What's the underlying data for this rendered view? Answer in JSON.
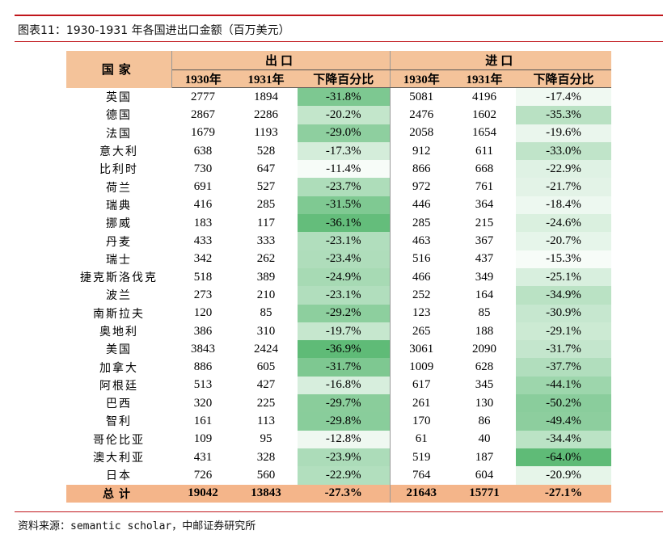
{
  "title": "图表11：1930-1931 年各国进出口金额（百万美元）",
  "source": "资料来源：semantic scholar，中邮证券研究所",
  "header": {
    "country": "国家",
    "export": "出口",
    "import": "进口",
    "y1930": "1930年",
    "y1931": "1931年",
    "decline": "下降百分比"
  },
  "rows": [
    {
      "country": "英国",
      "e1930": "2777",
      "e1931": "1894",
      "edrop": "-31.8%",
      "i1930": "5081",
      "i1931": "4196",
      "idrop": "-17.4%"
    },
    {
      "country": "德国",
      "e1930": "2867",
      "e1931": "2286",
      "edrop": "-20.2%",
      "i1930": "2476",
      "i1931": "1602",
      "idrop": "-35.3%"
    },
    {
      "country": "法国",
      "e1930": "1679",
      "e1931": "1193",
      "edrop": "-29.0%",
      "i1930": "2058",
      "i1931": "1654",
      "idrop": "-19.6%"
    },
    {
      "country": "意大利",
      "e1930": "638",
      "e1931": "528",
      "edrop": "-17.3%",
      "i1930": "912",
      "i1931": "611",
      "idrop": "-33.0%"
    },
    {
      "country": "比利时",
      "e1930": "730",
      "e1931": "647",
      "edrop": "-11.4%",
      "i1930": "866",
      "i1931": "668",
      "idrop": "-22.9%"
    },
    {
      "country": "荷兰",
      "e1930": "691",
      "e1931": "527",
      "edrop": "-23.7%",
      "i1930": "972",
      "i1931": "761",
      "idrop": "-21.7%"
    },
    {
      "country": "瑞典",
      "e1930": "416",
      "e1931": "285",
      "edrop": "-31.5%",
      "i1930": "446",
      "i1931": "364",
      "idrop": "-18.4%"
    },
    {
      "country": "挪威",
      "e1930": "183",
      "e1931": "117",
      "edrop": "-36.1%",
      "i1930": "285",
      "i1931": "215",
      "idrop": "-24.6%"
    },
    {
      "country": "丹麦",
      "e1930": "433",
      "e1931": "333",
      "edrop": "-23.1%",
      "i1930": "463",
      "i1931": "367",
      "idrop": "-20.7%"
    },
    {
      "country": "瑞士",
      "e1930": "342",
      "e1931": "262",
      "edrop": "-23.4%",
      "i1930": "516",
      "i1931": "437",
      "idrop": "-15.3%"
    },
    {
      "country": "捷克斯洛伐克",
      "e1930": "518",
      "e1931": "389",
      "edrop": "-24.9%",
      "i1930": "466",
      "i1931": "349",
      "idrop": "-25.1%"
    },
    {
      "country": "波兰",
      "e1930": "273",
      "e1931": "210",
      "edrop": "-23.1%",
      "i1930": "252",
      "i1931": "164",
      "idrop": "-34.9%"
    },
    {
      "country": "南斯拉夫",
      "e1930": "120",
      "e1931": "85",
      "edrop": "-29.2%",
      "i1930": "123",
      "i1931": "85",
      "idrop": "-30.9%"
    },
    {
      "country": "奥地利",
      "e1930": "386",
      "e1931": "310",
      "edrop": "-19.7%",
      "i1930": "265",
      "i1931": "188",
      "idrop": "-29.1%"
    },
    {
      "country": "美国",
      "e1930": "3843",
      "e1931": "2424",
      "edrop": "-36.9%",
      "i1930": "3061",
      "i1931": "2090",
      "idrop": "-31.7%"
    },
    {
      "country": "加拿大",
      "e1930": "886",
      "e1931": "605",
      "edrop": "-31.7%",
      "i1930": "1009",
      "i1931": "628",
      "idrop": "-37.7%"
    },
    {
      "country": "阿根廷",
      "e1930": "513",
      "e1931": "427",
      "edrop": "-16.8%",
      "i1930": "617",
      "i1931": "345",
      "idrop": "-44.1%"
    },
    {
      "country": "巴西",
      "e1930": "320",
      "e1931": "225",
      "edrop": "-29.7%",
      "i1930": "261",
      "i1931": "130",
      "idrop": "-50.2%"
    },
    {
      "country": "智利",
      "e1930": "161",
      "e1931": "113",
      "edrop": "-29.8%",
      "i1930": "170",
      "i1931": "86",
      "idrop": "-49.4%"
    },
    {
      "country": "哥伦比亚",
      "e1930": "109",
      "e1931": "95",
      "edrop": "-12.8%",
      "i1930": "61",
      "i1931": "40",
      "idrop": "-34.4%"
    },
    {
      "country": "澳大利亚",
      "e1930": "431",
      "e1931": "328",
      "edrop": "-23.9%",
      "i1930": "519",
      "i1931": "187",
      "idrop": "-64.0%"
    },
    {
      "country": "日本",
      "e1930": "726",
      "e1931": "560",
      "edrop": "-22.9%",
      "i1930": "764",
      "i1931": "604",
      "idrop": "-20.9%"
    }
  ],
  "total": {
    "country": "总计",
    "e1930": "19042",
    "e1931": "13843",
    "edrop": "-27.3%",
    "i1930": "21643",
    "i1931": "15771",
    "idrop": "-27.1%"
  },
  "colors": {
    "header_fill": "#f4c39a",
    "total_fill": "#f4b58a",
    "rule": "#c0161b",
    "heat_light": "#f7fcf8",
    "heat_dark": "#5fbb77"
  }
}
